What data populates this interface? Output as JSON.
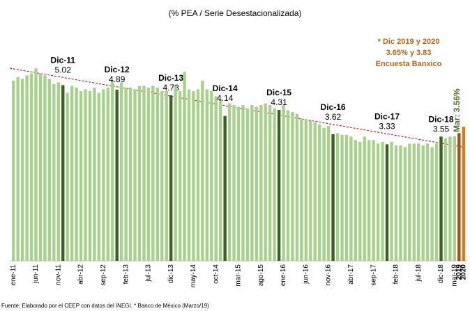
{
  "chart_data": {
    "type": "bar",
    "subtitle": "(% PEA / Serie Desestacionalizada)",
    "note": [
      "* Dic 2019 y 2020",
      "3.65% y 3.83",
      "Encuesta Banxico"
    ],
    "last_label": "Mar: 3.56%",
    "source": "Fuente: Elaborado por el CEEP con datos del INEGI. * Banco de México (Marzo/19)",
    "categories": [
      "ene-11",
      null,
      null,
      null,
      null,
      "jun-11",
      null,
      null,
      null,
      null,
      "nov-11",
      null,
      null,
      null,
      null,
      "abr-12",
      null,
      null,
      null,
      null,
      "sep-12",
      null,
      null,
      null,
      null,
      "feb-13",
      null,
      null,
      null,
      null,
      "jul-13",
      null,
      null,
      null,
      null,
      "dic-13",
      null,
      null,
      null,
      null,
      "may-14",
      null,
      null,
      null,
      null,
      "oct-14",
      null,
      null,
      null,
      null,
      "mar-15",
      null,
      null,
      null,
      null,
      "ago-15",
      null,
      null,
      null,
      null,
      "ene-16",
      null,
      null,
      null,
      null,
      "jun-16",
      null,
      null,
      null,
      null,
      "nov-16",
      null,
      null,
      null,
      null,
      "abr-17",
      null,
      null,
      null,
      null,
      "sep-17",
      null,
      null,
      null,
      null,
      "feb-18",
      null,
      null,
      null,
      null,
      "jul-18",
      null,
      null,
      null,
      null,
      "dic-18",
      null,
      null,
      "mar-19",
      "2019",
      "2020"
    ],
    "values": [
      5.15,
      5.25,
      5.2,
      5.3,
      5.35,
      5.5,
      5.35,
      5.3,
      5.2,
      5.05,
      5.1,
      5.02,
      4.8,
      5.0,
      4.95,
      4.85,
      4.9,
      4.85,
      4.95,
      4.8,
      4.9,
      4.95,
      5.15,
      4.89,
      5.1,
      4.95,
      4.95,
      4.9,
      5.0,
      5.0,
      4.95,
      5.0,
      4.95,
      4.85,
      4.85,
      4.73,
      5.0,
      4.85,
      5.4,
      4.9,
      4.85,
      4.9,
      5.15,
      4.9,
      4.85,
      4.7,
      4.6,
      4.14,
      4.5,
      4.45,
      4.4,
      4.45,
      4.35,
      4.45,
      4.4,
      4.45,
      4.5,
      4.45,
      4.35,
      4.31,
      4.45,
      4.3,
      4.25,
      4.2,
      4.05,
      4.05,
      4.0,
      3.95,
      3.9,
      3.8,
      3.85,
      3.62,
      3.65,
      3.6,
      3.6,
      3.55,
      3.45,
      3.4,
      3.55,
      3.45,
      3.45,
      3.35,
      3.4,
      3.33,
      3.4,
      3.3,
      3.3,
      3.25,
      3.35,
      3.35,
      3.35,
      3.3,
      3.35,
      3.25,
      3.35,
      3.55,
      3.5,
      3.55,
      3.56,
      3.65,
      3.83
    ],
    "bar_titles": [
      null,
      null,
      null,
      null,
      null,
      null,
      null,
      null,
      null,
      null,
      null,
      "Dic-11",
      null,
      null,
      null,
      null,
      null,
      null,
      null,
      null,
      null,
      null,
      null,
      "Dic-12",
      null,
      null,
      null,
      null,
      null,
      null,
      null,
      null,
      null,
      null,
      null,
      "Dic-13",
      null,
      null,
      null,
      null,
      null,
      null,
      null,
      null,
      null,
      null,
      null,
      "Dic-14",
      null,
      null,
      null,
      null,
      null,
      null,
      null,
      null,
      null,
      null,
      null,
      "Dic-15",
      null,
      null,
      null,
      null,
      null,
      null,
      null,
      null,
      null,
      null,
      null,
      "Dic-16",
      null,
      null,
      null,
      null,
      null,
      null,
      null,
      null,
      null,
      null,
      null,
      "Dic-17",
      null,
      null,
      null,
      null,
      null,
      null,
      null,
      null,
      null,
      null,
      null,
      "Dic-18",
      null,
      null,
      null,
      null,
      null
    ],
    "value_labels": [
      null,
      null,
      null,
      null,
      null,
      null,
      null,
      null,
      null,
      null,
      null,
      "5.02",
      null,
      null,
      null,
      null,
      null,
      null,
      null,
      null,
      null,
      null,
      null,
      "4.89",
      null,
      null,
      null,
      null,
      null,
      null,
      null,
      null,
      null,
      null,
      null,
      "4.73",
      null,
      null,
      null,
      null,
      null,
      null,
      null,
      null,
      null,
      null,
      null,
      "4.14",
      null,
      null,
      null,
      null,
      null,
      null,
      null,
      null,
      null,
      null,
      null,
      "4.31",
      null,
      null,
      null,
      null,
      null,
      null,
      null,
      null,
      null,
      null,
      null,
      "3.62",
      null,
      null,
      null,
      null,
      null,
      null,
      null,
      null,
      null,
      null,
      null,
      "3.33",
      null,
      null,
      null,
      null,
      null,
      null,
      null,
      null,
      null,
      null,
      null,
      "3.55",
      null,
      null,
      null,
      null,
      null
    ],
    "color": "#a9d18e",
    "highlight_color": "#3f5d26",
    "forecast_colors": [
      "#a0521d",
      "#d9781c"
    ],
    "ylim": [
      0,
      6
    ]
  }
}
